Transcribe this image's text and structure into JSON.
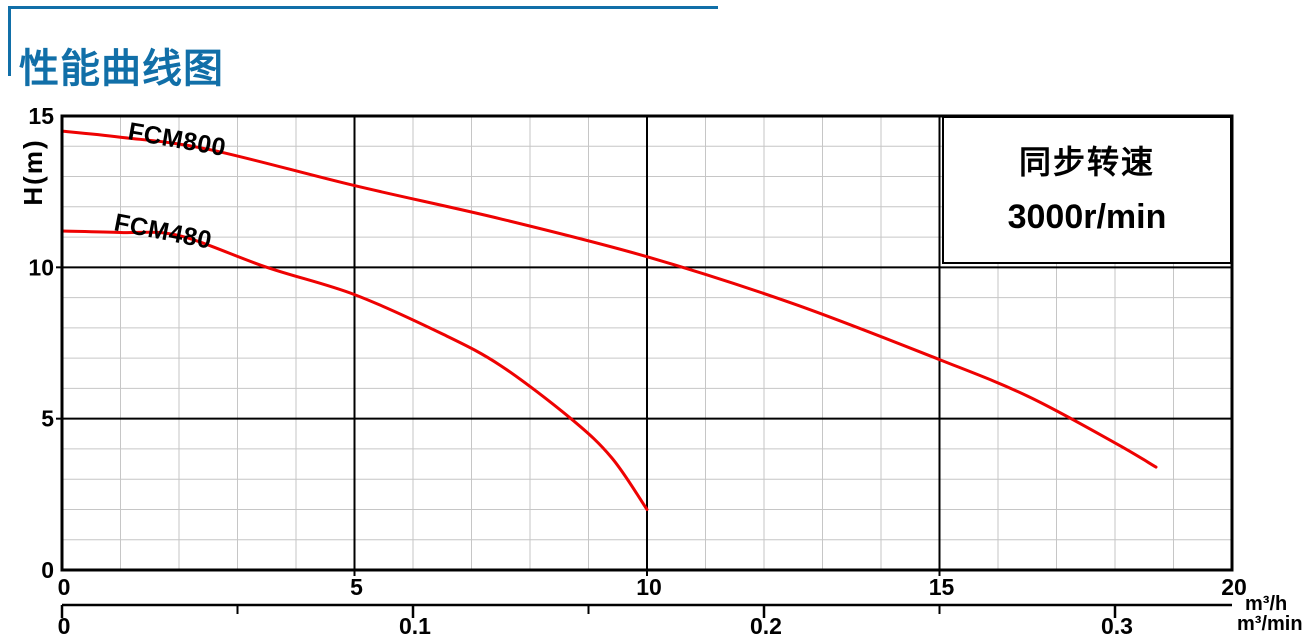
{
  "header": {
    "title": "性能曲线图"
  },
  "annotation_box": {
    "line1": "同步转速",
    "line2": "3000r/min"
  },
  "colors": {
    "accent_blue": "#116fa8",
    "curve_red": "#ee0202",
    "grid_minor": "#c6c6c6",
    "grid_major": "#000000",
    "text_black": "#000000"
  },
  "chart_data": {
    "type": "line",
    "title": "性能曲线图",
    "annotation": "同步转速 3000r/min",
    "grid": {
      "major": true,
      "minor": true
    },
    "legend_position": "none",
    "y_axis": {
      "label": "H(m)",
      "ticks": [
        "15",
        "10",
        "5",
        "0"
      ],
      "tick_values": [
        15,
        10,
        5,
        0
      ],
      "range": [
        0,
        15
      ],
      "minor_step": 1
    },
    "x_axis_primary": {
      "unit": "m³/h",
      "ticks": [
        "0",
        "5",
        "10",
        "15",
        "20"
      ],
      "tick_values": [
        0,
        5,
        10,
        15,
        20
      ],
      "range": [
        0,
        20
      ],
      "minor_step": 1
    },
    "x_axis_secondary": {
      "unit": "m³/min",
      "ticks": [
        "0",
        "0.1",
        "0.2",
        "0.3"
      ],
      "tick_values": [
        0,
        0.1,
        0.2,
        0.3
      ],
      "minor_tick_values": [
        0.05,
        0.15,
        0.25
      ],
      "range": [
        0,
        0.3333
      ],
      "conversion_to_primary": 60
    },
    "series": [
      {
        "name": "FCM800",
        "color": "#ee0202",
        "points": [
          [
            0,
            14.5
          ],
          [
            1,
            14.3
          ],
          [
            2.5,
            13.9
          ],
          [
            5,
            12.7
          ],
          [
            7.5,
            11.6
          ],
          [
            10,
            10.35
          ],
          [
            12.5,
            8.8
          ],
          [
            15,
            6.95
          ],
          [
            16.5,
            5.75
          ],
          [
            18,
            4.2
          ],
          [
            18.7,
            3.4
          ]
        ]
      },
      {
        "name": "FCM480",
        "color": "#ee0202",
        "points": [
          [
            0,
            11.2
          ],
          [
            1,
            11.15
          ],
          [
            2,
            11.05
          ],
          [
            3.5,
            10.0
          ],
          [
            5,
            9.1
          ],
          [
            6.5,
            7.8
          ],
          [
            7.5,
            6.75
          ],
          [
            8.7,
            5.0
          ],
          [
            9.4,
            3.7
          ],
          [
            10,
            2.0
          ]
        ]
      }
    ]
  }
}
